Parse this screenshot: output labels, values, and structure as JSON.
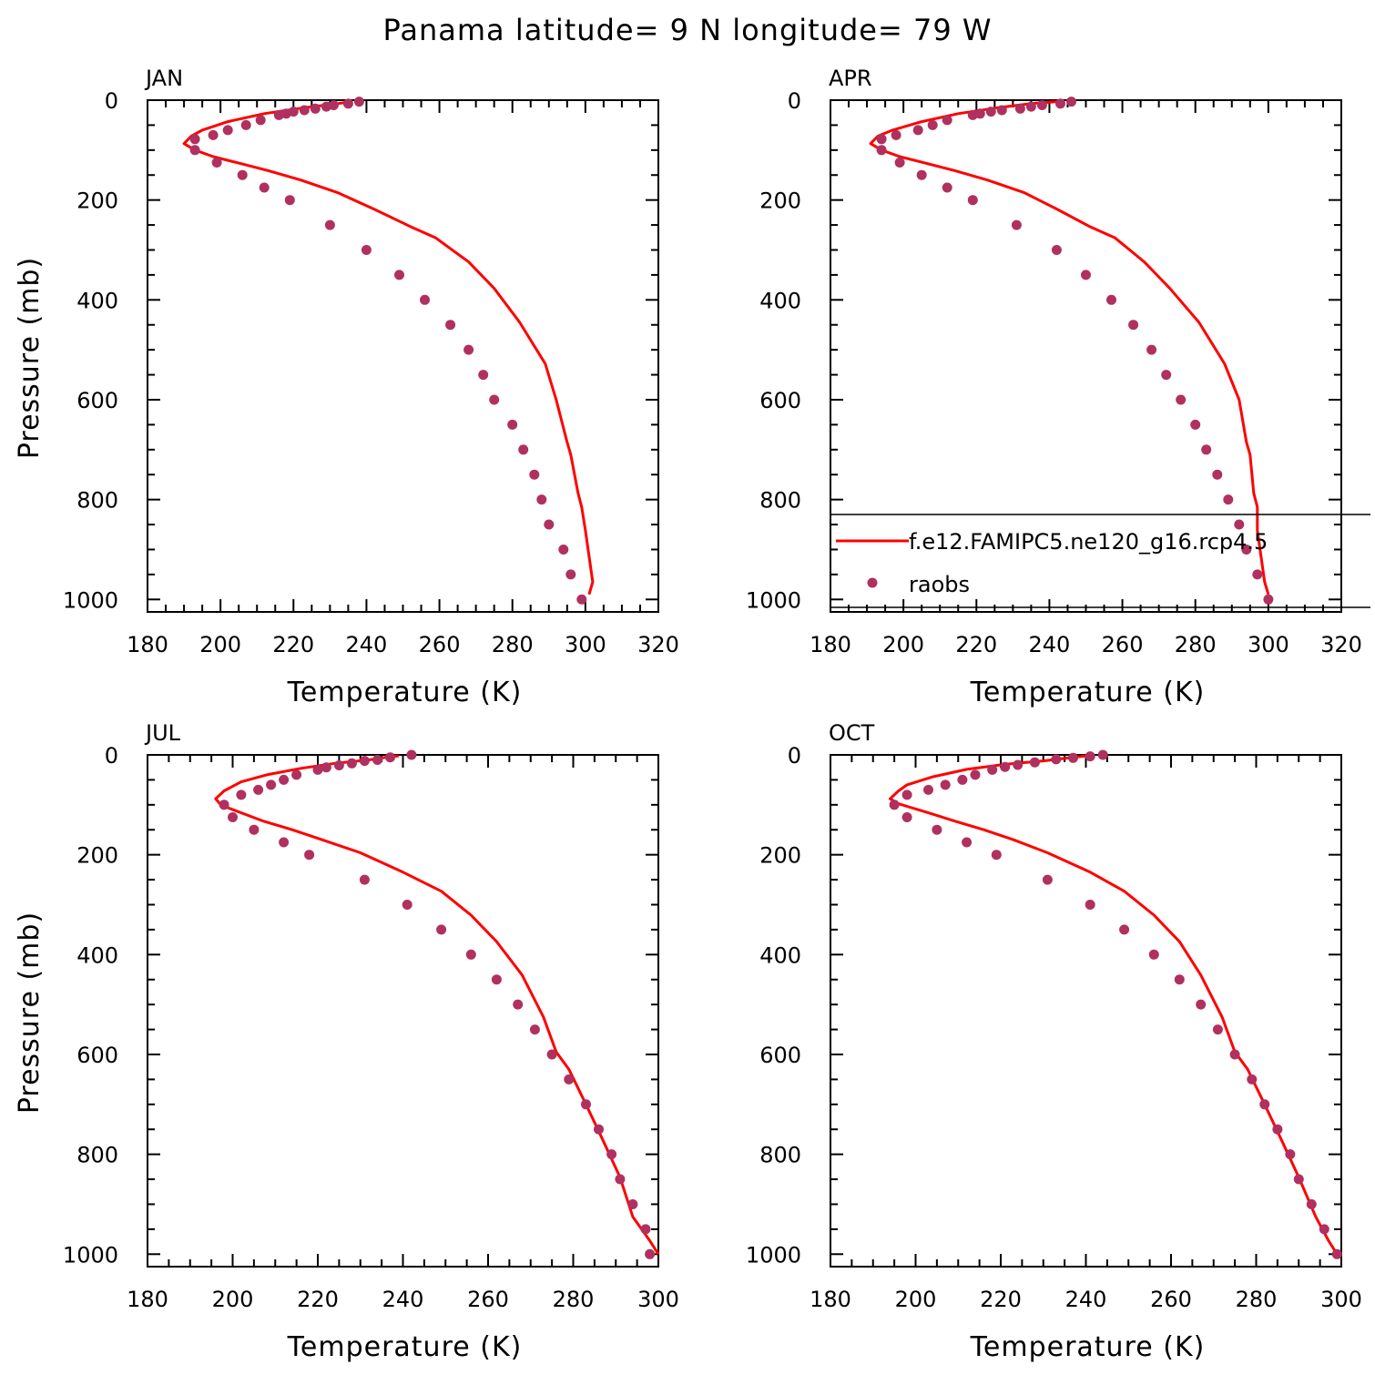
{
  "title": "Panama  latitude= 9 N longitude= 79 W",
  "colors": {
    "model": "#ff0000",
    "obs": "#b03060"
  },
  "legend": {
    "model_label": "f.e12.FAMIPC5.ne120_g16.rcp4.5",
    "obs_label": "raobs"
  },
  "chart_data": [
    {
      "type": "line",
      "panel_title": "JAN",
      "xlabel": "Temperature (K)",
      "ylabel": "Pressure (mb)",
      "xlim": [
        180,
        320
      ],
      "ylim": [
        1025,
        0
      ],
      "xticks": [
        180,
        200,
        220,
        240,
        260,
        280,
        300,
        320
      ],
      "yticks": [
        0,
        200,
        400,
        600,
        800,
        1000
      ],
      "series": [
        {
          "kind": "line",
          "points": [
            [
              236,
              3
            ],
            [
              232,
              7
            ],
            [
              222,
              16
            ],
            [
              212,
              27
            ],
            [
              202,
              43
            ],
            [
              195,
              60
            ],
            [
              192,
              72
            ],
            [
              190,
              87
            ],
            [
              193,
              100
            ],
            [
              198,
              113
            ],
            [
              205,
              126
            ],
            [
              213,
              141
            ],
            [
              222,
              160
            ],
            [
              232,
              185
            ],
            [
              242,
              218
            ],
            [
              252,
              253
            ],
            [
              259,
              276
            ],
            [
              268,
              324
            ],
            [
              275,
              377
            ],
            [
              282,
              445
            ],
            [
              289,
              528
            ],
            [
              292,
              600
            ],
            [
              295,
              685
            ],
            [
              296,
              710
            ],
            [
              298,
              787
            ],
            [
              299,
              815
            ],
            [
              300,
              862
            ],
            [
              302,
              965
            ],
            [
              301,
              990
            ]
          ]
        },
        {
          "kind": "scatter",
          "points": [
            [
              238,
              3
            ],
            [
              235,
              7
            ],
            [
              231,
              10
            ],
            [
              229,
              13
            ],
            [
              226,
              17
            ],
            [
              223,
              20
            ],
            [
              220,
              23
            ],
            [
              218,
              27
            ],
            [
              216,
              30
            ],
            [
              211,
              40
            ],
            [
              207,
              50
            ],
            [
              202,
              60
            ],
            [
              198,
              70
            ],
            [
              193,
              78
            ],
            [
              193,
              100
            ],
            [
              199,
              125
            ],
            [
              206,
              150
            ],
            [
              212,
              175
            ],
            [
              219,
              200
            ],
            [
              230,
              250
            ],
            [
              240,
              300
            ],
            [
              249,
              350
            ],
            [
              256,
              400
            ],
            [
              263,
              450
            ],
            [
              268,
              500
            ],
            [
              272,
              550
            ],
            [
              275,
              600
            ],
            [
              280,
              650
            ],
            [
              283,
              700
            ],
            [
              286,
              750
            ],
            [
              288,
              800
            ],
            [
              290,
              850
            ],
            [
              294,
              900
            ],
            [
              296,
              950
            ],
            [
              299,
              1000
            ]
          ]
        }
      ]
    },
    {
      "type": "line",
      "panel_title": "APR",
      "xlabel": "Temperature (K)",
      "ylabel": "",
      "xlim": [
        180,
        320
      ],
      "ylim": [
        1025,
        0
      ],
      "xticks": [
        180,
        200,
        220,
        240,
        260,
        280,
        300,
        320
      ],
      "yticks": [
        0,
        200,
        400,
        600,
        800,
        1000
      ],
      "series": [
        {
          "kind": "line",
          "points": [
            [
              242,
              3
            ],
            [
              235,
              7
            ],
            [
              225,
              16
            ],
            [
              215,
              27
            ],
            [
              205,
              43
            ],
            [
              197,
              60
            ],
            [
              193,
              72
            ],
            [
              191,
              87
            ],
            [
              194,
              100
            ],
            [
              199,
              113
            ],
            [
              206,
              126
            ],
            [
              214,
              141
            ],
            [
              223,
              160
            ],
            [
              233,
              185
            ],
            [
              242,
              218
            ],
            [
              251,
              253
            ],
            [
              258,
              276
            ],
            [
              266,
              324
            ],
            [
              273,
              377
            ],
            [
              281,
              445
            ],
            [
              288,
              528
            ],
            [
              292,
              600
            ],
            [
              294,
              685
            ],
            [
              295,
              710
            ],
            [
              296,
              787
            ],
            [
              297,
              815
            ],
            [
              297,
              862
            ],
            [
              299,
              965
            ],
            [
              300,
              990
            ]
          ]
        },
        {
          "kind": "scatter",
          "points": [
            [
              246,
              3
            ],
            [
              243,
              7
            ],
            [
              238,
              10
            ],
            [
              235,
              13
            ],
            [
              232,
              17
            ],
            [
              227,
              20
            ],
            [
              224,
              23
            ],
            [
              221,
              27
            ],
            [
              219,
              30
            ],
            [
              212,
              40
            ],
            [
              208,
              50
            ],
            [
              204,
              60
            ],
            [
              198,
              70
            ],
            [
              194,
              78
            ],
            [
              194,
              100
            ],
            [
              199,
              125
            ],
            [
              205,
              150
            ],
            [
              212,
              175
            ],
            [
              219,
              200
            ],
            [
              231,
              250
            ],
            [
              242,
              300
            ],
            [
              250,
              350
            ],
            [
              257,
              400
            ],
            [
              263,
              450
            ],
            [
              268,
              500
            ],
            [
              272,
              550
            ],
            [
              276,
              600
            ],
            [
              280,
              650
            ],
            [
              283,
              700
            ],
            [
              286,
              750
            ],
            [
              289,
              800
            ],
            [
              292,
              850
            ],
            [
              294,
              900
            ],
            [
              297,
              950
            ],
            [
              300,
              1000
            ]
          ]
        }
      ]
    },
    {
      "type": "line",
      "panel_title": "JUL",
      "xlabel": "Temperature (K)",
      "ylabel": "Pressure (mb)",
      "xlim": [
        180,
        300
      ],
      "ylim": [
        1025,
        0
      ],
      "xticks": [
        180,
        200,
        220,
        240,
        260,
        280,
        300
      ],
      "yticks": [
        0,
        200,
        400,
        600,
        800,
        1000
      ],
      "series": [
        {
          "kind": "line",
          "points": [
            [
              239,
              2
            ],
            [
              236,
              5
            ],
            [
              232,
              10
            ],
            [
              224,
              17
            ],
            [
              216,
              27
            ],
            [
              208,
              40
            ],
            [
              202,
              54
            ],
            [
              198,
              72
            ],
            [
              196,
              88
            ],
            [
              197,
              98
            ],
            [
              198,
              103
            ],
            [
              202,
              116
            ],
            [
              207,
              132
            ],
            [
              214,
              150
            ],
            [
              221,
              170
            ],
            [
              230,
              196
            ],
            [
              240,
              235
            ],
            [
              249,
              273
            ],
            [
              256,
              321
            ],
            [
              262,
              374
            ],
            [
              268,
              441
            ],
            [
              273,
              525
            ],
            [
              276,
              595
            ],
            [
              279,
              630
            ],
            [
              283,
              700
            ],
            [
              287,
              772
            ],
            [
              291,
              846
            ],
            [
              294,
              925
            ],
            [
              298,
              973
            ],
            [
              300,
              1000
            ]
          ]
        },
        {
          "kind": "scatter",
          "points": [
            [
              242,
              0
            ],
            [
              237,
              5
            ],
            [
              234,
              10
            ],
            [
              231,
              12
            ],
            [
              228,
              17
            ],
            [
              225,
              21
            ],
            [
              222,
              25
            ],
            [
              220,
              30
            ],
            [
              215,
              40
            ],
            [
              212,
              50
            ],
            [
              209,
              60
            ],
            [
              206,
              70
            ],
            [
              202,
              80
            ],
            [
              198,
              100
            ],
            [
              200,
              125
            ],
            [
              205,
              150
            ],
            [
              212,
              175
            ],
            [
              218,
              200
            ],
            [
              231,
              250
            ],
            [
              241,
              300
            ],
            [
              249,
              350
            ],
            [
              256,
              400
            ],
            [
              262,
              450
            ],
            [
              267,
              500
            ],
            [
              271,
              550
            ],
            [
              275,
              600
            ],
            [
              279,
              650
            ],
            [
              283,
              700
            ],
            [
              286,
              750
            ],
            [
              289,
              800
            ],
            [
              291,
              850
            ],
            [
              294,
              900
            ],
            [
              297,
              950
            ],
            [
              298,
              1000
            ]
          ]
        }
      ]
    },
    {
      "type": "line",
      "panel_title": "OCT",
      "xlabel": "Temperature (K)",
      "ylabel": "",
      "xlim": [
        180,
        300
      ],
      "ylim": [
        1025,
        0
      ],
      "xticks": [
        180,
        200,
        220,
        240,
        260,
        280,
        300
      ],
      "yticks": [
        0,
        200,
        400,
        600,
        800,
        1000
      ],
      "series": [
        {
          "kind": "line",
          "points": [
            [
              240,
              2
            ],
            [
              236,
              6
            ],
            [
              230,
              12
            ],
            [
              221,
              19
            ],
            [
              212,
              29
            ],
            [
              204,
              44
            ],
            [
              198,
              60
            ],
            [
              196,
              72
            ],
            [
              194,
              88
            ],
            [
              196,
              98
            ],
            [
              198,
              103
            ],
            [
              203,
              116
            ],
            [
              209,
              132
            ],
            [
              216,
              150
            ],
            [
              223,
              170
            ],
            [
              231,
              196
            ],
            [
              241,
              235
            ],
            [
              249,
              273
            ],
            [
              256,
              321
            ],
            [
              262,
              374
            ],
            [
              267,
              441
            ],
            [
              272,
              525
            ],
            [
              275,
              595
            ],
            [
              278,
              630
            ],
            [
              282,
              700
            ],
            [
              286,
              772
            ],
            [
              290,
              846
            ],
            [
              294,
              925
            ],
            [
              297,
              973
            ],
            [
              299,
              1000
            ]
          ]
        },
        {
          "kind": "scatter",
          "points": [
            [
              244,
              0
            ],
            [
              241,
              3
            ],
            [
              237,
              6
            ],
            [
              233,
              9
            ],
            [
              228,
              15
            ],
            [
              224,
              20
            ],
            [
              221,
              24
            ],
            [
              218,
              30
            ],
            [
              214,
              40
            ],
            [
              211,
              50
            ],
            [
              207,
              60
            ],
            [
              203,
              70
            ],
            [
              198,
              80
            ],
            [
              195,
              100
            ],
            [
              198,
              125
            ],
            [
              205,
              150
            ],
            [
              212,
              175
            ],
            [
              219,
              200
            ],
            [
              231,
              250
            ],
            [
              241,
              300
            ],
            [
              249,
              350
            ],
            [
              256,
              400
            ],
            [
              262,
              450
            ],
            [
              267,
              500
            ],
            [
              271,
              550
            ],
            [
              275,
              600
            ],
            [
              279,
              650
            ],
            [
              282,
              700
            ],
            [
              285,
              750
            ],
            [
              288,
              800
            ],
            [
              290,
              850
            ],
            [
              293,
              900
            ],
            [
              296,
              950
            ],
            [
              299,
              1000
            ]
          ]
        }
      ]
    }
  ]
}
